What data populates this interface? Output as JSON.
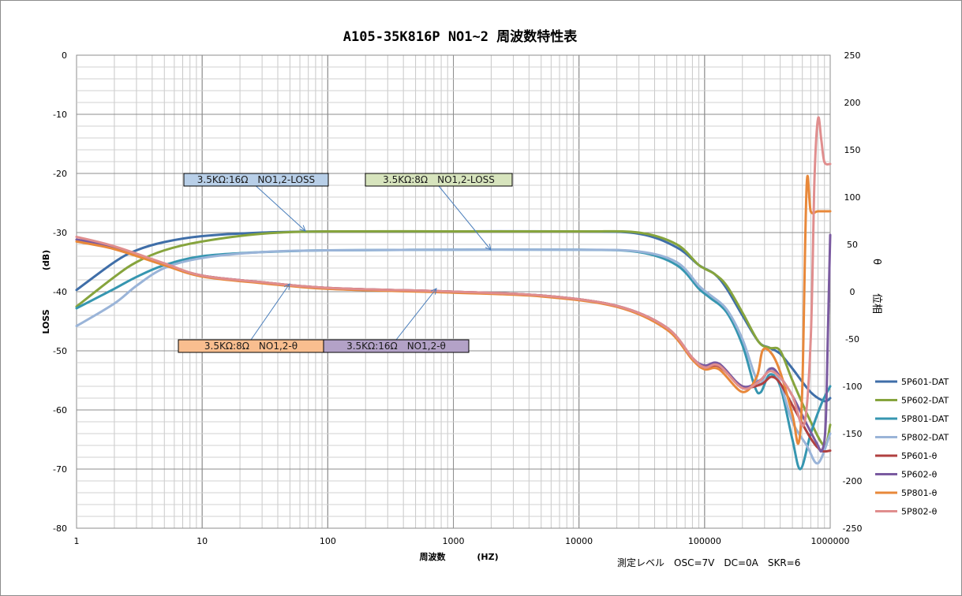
{
  "chart_data": {
    "type": "line",
    "title": "A105-35K816P NO1~2 周波数特性表",
    "xlabel": "周波数",
    "xunit": "(HZ)",
    "ylabel": "LOSS",
    "yunit": "(dB)",
    "y2label": "位相",
    "y2unit": "θ",
    "x_scale": "log",
    "xlim": [
      1,
      1000000
    ],
    "ylim": [
      -80,
      0
    ],
    "y2lim": [
      -250,
      250
    ],
    "x_ticks": [
      "1",
      "10",
      "100",
      "1000",
      "10000",
      "100000",
      "1000000"
    ],
    "y_ticks": [
      "0",
      "-10",
      "-20",
      "-30",
      "-40",
      "-50",
      "-60",
      "-70",
      "-80"
    ],
    "y2_ticks": [
      "250",
      "200",
      "150",
      "100",
      "50",
      "0",
      "-50",
      "-100",
      "-150",
      "-200",
      "-250"
    ],
    "grid": true,
    "legend_position": "right",
    "note": "測定レベル　OSC=7V　DC=0A　SKR=6",
    "series": [
      {
        "name": "5P601-DAT",
        "axis": "left",
        "color": "#3f6ea8",
        "points": [
          [
            1,
            -39.7
          ],
          [
            2,
            -35
          ],
          [
            3,
            -33
          ],
          [
            5,
            -31.6
          ],
          [
            10,
            -30.6
          ],
          [
            30,
            -30
          ],
          [
            100,
            -29.8
          ],
          [
            1000,
            -29.8
          ],
          [
            10000,
            -29.8
          ],
          [
            30000,
            -30.2
          ],
          [
            60000,
            -32.5
          ],
          [
            90000,
            -35.5
          ],
          [
            120000,
            -37
          ],
          [
            150000,
            -39.5
          ],
          [
            200000,
            -44
          ],
          [
            270000,
            -48.5
          ],
          [
            330000,
            -49.5
          ],
          [
            400000,
            -50.5
          ],
          [
            500000,
            -53
          ],
          [
            700000,
            -57
          ],
          [
            900000,
            -58.5
          ],
          [
            1000000,
            -58
          ]
        ]
      },
      {
        "name": "5P602-DAT",
        "axis": "left",
        "color": "#86a43d",
        "points": [
          [
            1,
            -42.5
          ],
          [
            2,
            -37.5
          ],
          [
            3,
            -35
          ],
          [
            5,
            -33
          ],
          [
            10,
            -31.5
          ],
          [
            30,
            -30.2
          ],
          [
            100,
            -29.8
          ],
          [
            1000,
            -29.8
          ],
          [
            10000,
            -29.8
          ],
          [
            30000,
            -30
          ],
          [
            60000,
            -32
          ],
          [
            90000,
            -35.5
          ],
          [
            120000,
            -37
          ],
          [
            150000,
            -39
          ],
          [
            200000,
            -43.5
          ],
          [
            270000,
            -48.5
          ],
          [
            330000,
            -49.5
          ],
          [
            400000,
            -50
          ],
          [
            500000,
            -55
          ],
          [
            700000,
            -62
          ],
          [
            900000,
            -66
          ],
          [
            1000000,
            -62.5
          ]
        ]
      },
      {
        "name": "5P801-DAT",
        "axis": "left",
        "color": "#3696b0",
        "points": [
          [
            1,
            -42.8
          ],
          [
            2,
            -39.5
          ],
          [
            3,
            -37.5
          ],
          [
            5,
            -35.5
          ],
          [
            10,
            -34
          ],
          [
            30,
            -33.3
          ],
          [
            100,
            -33
          ],
          [
            1000,
            -32.9
          ],
          [
            10000,
            -32.9
          ],
          [
            30000,
            -33.3
          ],
          [
            60000,
            -35.5
          ],
          [
            90000,
            -39.5
          ],
          [
            110000,
            -41
          ],
          [
            150000,
            -43.5
          ],
          [
            200000,
            -49
          ],
          [
            250000,
            -56
          ],
          [
            280000,
            -57
          ],
          [
            330000,
            -54
          ],
          [
            400000,
            -56
          ],
          [
            500000,
            -65
          ],
          [
            580000,
            -70
          ],
          [
            700000,
            -64
          ],
          [
            850000,
            -59
          ],
          [
            1000000,
            -56
          ]
        ]
      },
      {
        "name": "5P802-DAT",
        "axis": "left",
        "color": "#9ab4d8",
        "points": [
          [
            1,
            -45.8
          ],
          [
            2,
            -42
          ],
          [
            3,
            -39
          ],
          [
            5,
            -36
          ],
          [
            10,
            -34.3
          ],
          [
            30,
            -33.3
          ],
          [
            100,
            -33
          ],
          [
            1000,
            -32.9
          ],
          [
            10000,
            -32.9
          ],
          [
            30000,
            -33.2
          ],
          [
            60000,
            -35
          ],
          [
            90000,
            -39
          ],
          [
            110000,
            -40.5
          ],
          [
            150000,
            -43
          ],
          [
            200000,
            -48
          ],
          [
            250000,
            -54
          ],
          [
            280000,
            -55.5
          ],
          [
            330000,
            -53
          ],
          [
            400000,
            -55.5
          ],
          [
            500000,
            -62
          ],
          [
            650000,
            -66
          ],
          [
            800000,
            -69
          ],
          [
            1000000,
            -64
          ]
        ]
      },
      {
        "name": "5P601-θ",
        "axis": "right",
        "color": "#b04040",
        "points": [
          [
            1,
            55
          ],
          [
            2,
            47
          ],
          [
            5,
            29
          ],
          [
            10,
            17
          ],
          [
            30,
            10
          ],
          [
            100,
            4
          ],
          [
            1000,
            0
          ],
          [
            5000,
            -4
          ],
          [
            20000,
            -15
          ],
          [
            50000,
            -38
          ],
          [
            80000,
            -70
          ],
          [
            100000,
            -80
          ],
          [
            130000,
            -79
          ],
          [
            200000,
            -100
          ],
          [
            280000,
            -98
          ],
          [
            340000,
            -90
          ],
          [
            400000,
            -97
          ],
          [
            500000,
            -120
          ],
          [
            700000,
            -155
          ],
          [
            850000,
            -168
          ],
          [
            1000000,
            -168
          ]
        ]
      },
      {
        "name": "5P602-θ",
        "axis": "right",
        "color": "#7a5aa0",
        "points": [
          [
            1,
            55
          ],
          [
            2,
            47
          ],
          [
            5,
            29
          ],
          [
            10,
            17
          ],
          [
            30,
            10
          ],
          [
            100,
            4
          ],
          [
            1000,
            0
          ],
          [
            5000,
            -4
          ],
          [
            20000,
            -15
          ],
          [
            50000,
            -38
          ],
          [
            80000,
            -70
          ],
          [
            100000,
            -78
          ],
          [
            130000,
            -76
          ],
          [
            200000,
            -100
          ],
          [
            280000,
            -93
          ],
          [
            340000,
            -81
          ],
          [
            400000,
            -90
          ],
          [
            500000,
            -110
          ],
          [
            650000,
            -140
          ],
          [
            780000,
            -160
          ],
          [
            860000,
            -168
          ],
          [
            920000,
            -140
          ],
          [
            960000,
            -40
          ],
          [
            1000000,
            60
          ]
        ]
      },
      {
        "name": "5P801-θ",
        "axis": "right",
        "color": "#e8883a",
        "points": [
          [
            1,
            53
          ],
          [
            2,
            45
          ],
          [
            5,
            28
          ],
          [
            10,
            16
          ],
          [
            30,
            9
          ],
          [
            100,
            3
          ],
          [
            1000,
            -1
          ],
          [
            5000,
            -5
          ],
          [
            20000,
            -16
          ],
          [
            50000,
            -40
          ],
          [
            80000,
            -72
          ],
          [
            100000,
            -82
          ],
          [
            130000,
            -82
          ],
          [
            200000,
            -106
          ],
          [
            260000,
            -90
          ],
          [
            290000,
            -62
          ],
          [
            340000,
            -65
          ],
          [
            400000,
            -85
          ],
          [
            500000,
            -130
          ],
          [
            560000,
            -160
          ],
          [
            600000,
            -100
          ],
          [
            650000,
            113
          ],
          [
            700000,
            85
          ],
          [
            800000,
            85
          ],
          [
            1000000,
            85
          ]
        ]
      },
      {
        "name": "5P802-θ",
        "axis": "right",
        "color": "#e08e8e",
        "points": [
          [
            1,
            58
          ],
          [
            2,
            48
          ],
          [
            5,
            30
          ],
          [
            10,
            17
          ],
          [
            30,
            10
          ],
          [
            100,
            4
          ],
          [
            1000,
            0
          ],
          [
            5000,
            -4
          ],
          [
            20000,
            -15
          ],
          [
            50000,
            -38
          ],
          [
            80000,
            -70
          ],
          [
            100000,
            -80
          ],
          [
            130000,
            -78
          ],
          [
            200000,
            -102
          ],
          [
            270000,
            -95
          ],
          [
            330000,
            -84
          ],
          [
            400000,
            -91
          ],
          [
            500000,
            -110
          ],
          [
            620000,
            -140
          ],
          [
            700000,
            -50
          ],
          [
            750000,
            120
          ],
          [
            800000,
            183
          ],
          [
            850000,
            160
          ],
          [
            900000,
            137
          ],
          [
            1000000,
            135
          ]
        ]
      }
    ],
    "annotations": [
      {
        "text": "3.5KΩ:16Ω　NO1,2-LOSS",
        "bg": "#b8cfe8"
      },
      {
        "text": "3.5KΩ:8Ω　NO1,2-LOSS",
        "bg": "#d7e4bd"
      },
      {
        "text": "3.5KΩ:8Ω　NO1,2-θ",
        "bg": "#f9be8f"
      },
      {
        "text": "3.5KΩ:16Ω　NO1,2-θ",
        "bg": "#b3a2c7"
      }
    ]
  }
}
